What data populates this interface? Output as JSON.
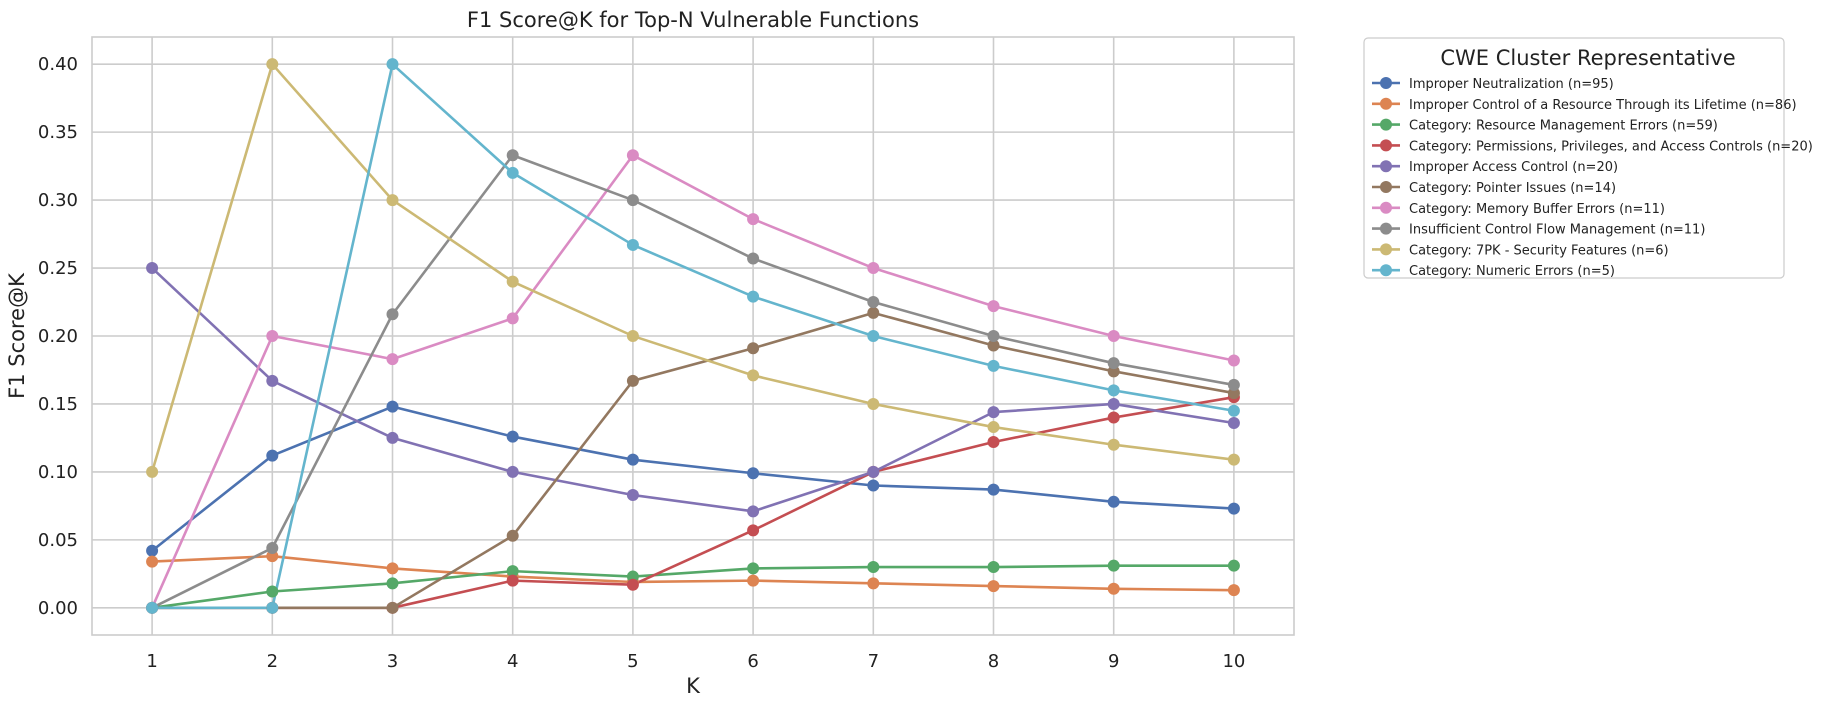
{
  "chart_data": {
    "type": "line",
    "title": "F1 Score@K for Top-N Vulnerable Functions",
    "xlabel": "K",
    "ylabel": "F1 Score@K",
    "x": [
      1,
      2,
      3,
      4,
      5,
      6,
      7,
      8,
      9,
      10
    ],
    "xlim": [
      0.5,
      10.5
    ],
    "ylim": [
      -0.02,
      0.42
    ],
    "yticks": [
      0.0,
      0.05,
      0.1,
      0.15,
      0.2,
      0.25,
      0.3,
      0.35,
      0.4
    ],
    "ytick_labels": [
      "0.00",
      "0.05",
      "0.10",
      "0.15",
      "0.20",
      "0.25",
      "0.30",
      "0.35",
      "0.40"
    ],
    "xtick_labels": [
      "1",
      "2",
      "3",
      "4",
      "5",
      "6",
      "7",
      "8",
      "9",
      "10"
    ],
    "grid": true,
    "legend_title": "CWE Cluster Representative",
    "legend_position": "outside-right-top",
    "series": [
      {
        "name": "Improper Neutralization (n=95)",
        "color": "#4c72b0",
        "values": [
          0.042,
          0.112,
          0.148,
          0.126,
          0.109,
          0.099,
          0.09,
          0.087,
          0.078,
          0.073
        ]
      },
      {
        "name": "Improper Control of a Resource Through its Lifetime (n=86)",
        "color": "#dd8452",
        "values": [
          0.034,
          0.038,
          0.029,
          0.023,
          0.019,
          0.02,
          0.018,
          0.016,
          0.014,
          0.013
        ]
      },
      {
        "name": "Category: Resource Management Errors (n=59)",
        "color": "#55a868",
        "values": [
          0.0,
          0.012,
          0.018,
          0.027,
          0.023,
          0.029,
          0.03,
          0.03,
          0.031,
          0.031
        ]
      },
      {
        "name": "Category: Permissions, Privileges, and Access Controls (n=20)",
        "color": "#c44e52",
        "values": [
          0.0,
          0.0,
          0.0,
          0.02,
          0.017,
          0.057,
          0.1,
          0.122,
          0.14,
          0.155
        ]
      },
      {
        "name": "Improper Access Control (n=20)",
        "color": "#8172b3",
        "values": [
          0.25,
          0.167,
          0.125,
          0.1,
          0.083,
          0.071,
          0.1,
          0.144,
          0.15,
          0.136
        ]
      },
      {
        "name": "Category: Pointer Issues (n=14)",
        "color": "#937860",
        "values": [
          0.0,
          0.0,
          0.0,
          0.053,
          0.167,
          0.191,
          0.217,
          0.193,
          0.174,
          0.158
        ]
      },
      {
        "name": "Category: Memory Buffer Errors (n=11)",
        "color": "#da8bc3",
        "values": [
          0.0,
          0.2,
          0.183,
          0.213,
          0.333,
          0.286,
          0.25,
          0.222,
          0.2,
          0.182
        ]
      },
      {
        "name": "Insufficient Control Flow Management (n=11)",
        "color": "#8c8c8c",
        "values": [
          0.0,
          0.044,
          0.216,
          0.333,
          0.3,
          0.257,
          0.225,
          0.2,
          0.18,
          0.164
        ]
      },
      {
        "name": "Category: 7PK - Security Features (n=6)",
        "color": "#ccb974",
        "values": [
          0.1,
          0.4,
          0.3,
          0.24,
          0.2,
          0.171,
          0.15,
          0.133,
          0.12,
          0.109
        ]
      },
      {
        "name": "Category: Numeric Errors (n=5)",
        "color": "#64b5cd",
        "values": [
          0.0,
          0.0,
          0.4,
          0.32,
          0.267,
          0.229,
          0.2,
          0.178,
          0.16,
          0.145
        ]
      }
    ]
  }
}
